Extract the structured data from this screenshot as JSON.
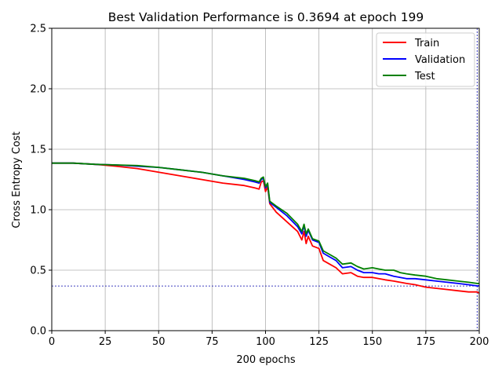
{
  "chart_data": {
    "type": "line",
    "title": "Best Validation Performance is 0.3694 at epoch 199",
    "xlabel": "200 epochs",
    "ylabel": "Cross Entropy Cost",
    "xlim": [
      0,
      200
    ],
    "ylim": [
      0,
      2.5
    ],
    "x_ticks": [
      "0",
      "25",
      "50",
      "75",
      "100",
      "125",
      "150",
      "175",
      "200"
    ],
    "y_ticks": [
      "0.0",
      "0.5",
      "1.0",
      "1.5",
      "2.0",
      "2.5"
    ],
    "grid": true,
    "legend_position": "top-right",
    "best_epoch": 199,
    "best_value": 0.3694,
    "x": [
      0,
      10,
      20,
      30,
      40,
      50,
      60,
      70,
      80,
      90,
      95,
      97,
      98,
      99,
      100,
      101,
      102,
      105,
      110,
      115,
      117,
      118,
      119,
      120,
      122,
      125,
      127,
      130,
      133,
      136,
      140,
      143,
      146,
      150,
      153,
      156,
      160,
      163,
      166,
      170,
      175,
      180,
      185,
      190,
      195,
      199,
      200
    ],
    "series": [
      {
        "name": "Train",
        "color": "#ff0000",
        "values": [
          1.385,
          1.385,
          1.375,
          1.36,
          1.34,
          1.31,
          1.28,
          1.25,
          1.22,
          1.2,
          1.18,
          1.17,
          1.23,
          1.24,
          1.15,
          1.19,
          1.05,
          0.98,
          0.9,
          0.82,
          0.75,
          0.82,
          0.72,
          0.78,
          0.7,
          0.68,
          0.58,
          0.55,
          0.52,
          0.47,
          0.48,
          0.45,
          0.44,
          0.44,
          0.43,
          0.42,
          0.41,
          0.4,
          0.39,
          0.38,
          0.36,
          0.35,
          0.34,
          0.33,
          0.32,
          0.32,
          0.31
        ]
      },
      {
        "name": "Validation",
        "color": "#0000ff",
        "values": [
          1.385,
          1.385,
          1.375,
          1.37,
          1.36,
          1.35,
          1.33,
          1.31,
          1.28,
          1.25,
          1.23,
          1.22,
          1.25,
          1.26,
          1.18,
          1.21,
          1.06,
          1.02,
          0.95,
          0.86,
          0.8,
          0.87,
          0.78,
          0.83,
          0.75,
          0.73,
          0.64,
          0.61,
          0.58,
          0.52,
          0.53,
          0.5,
          0.48,
          0.48,
          0.47,
          0.47,
          0.45,
          0.44,
          0.43,
          0.43,
          0.42,
          0.41,
          0.4,
          0.39,
          0.38,
          0.37,
          0.37
        ]
      },
      {
        "name": "Test",
        "color": "#008000",
        "values": [
          1.385,
          1.385,
          1.375,
          1.37,
          1.365,
          1.35,
          1.33,
          1.31,
          1.28,
          1.26,
          1.24,
          1.23,
          1.26,
          1.27,
          1.19,
          1.22,
          1.07,
          1.03,
          0.97,
          0.88,
          0.82,
          0.88,
          0.8,
          0.84,
          0.76,
          0.74,
          0.66,
          0.63,
          0.6,
          0.55,
          0.56,
          0.53,
          0.51,
          0.52,
          0.51,
          0.5,
          0.5,
          0.48,
          0.47,
          0.46,
          0.45,
          0.43,
          0.42,
          0.41,
          0.4,
          0.39,
          0.39
        ]
      }
    ]
  }
}
